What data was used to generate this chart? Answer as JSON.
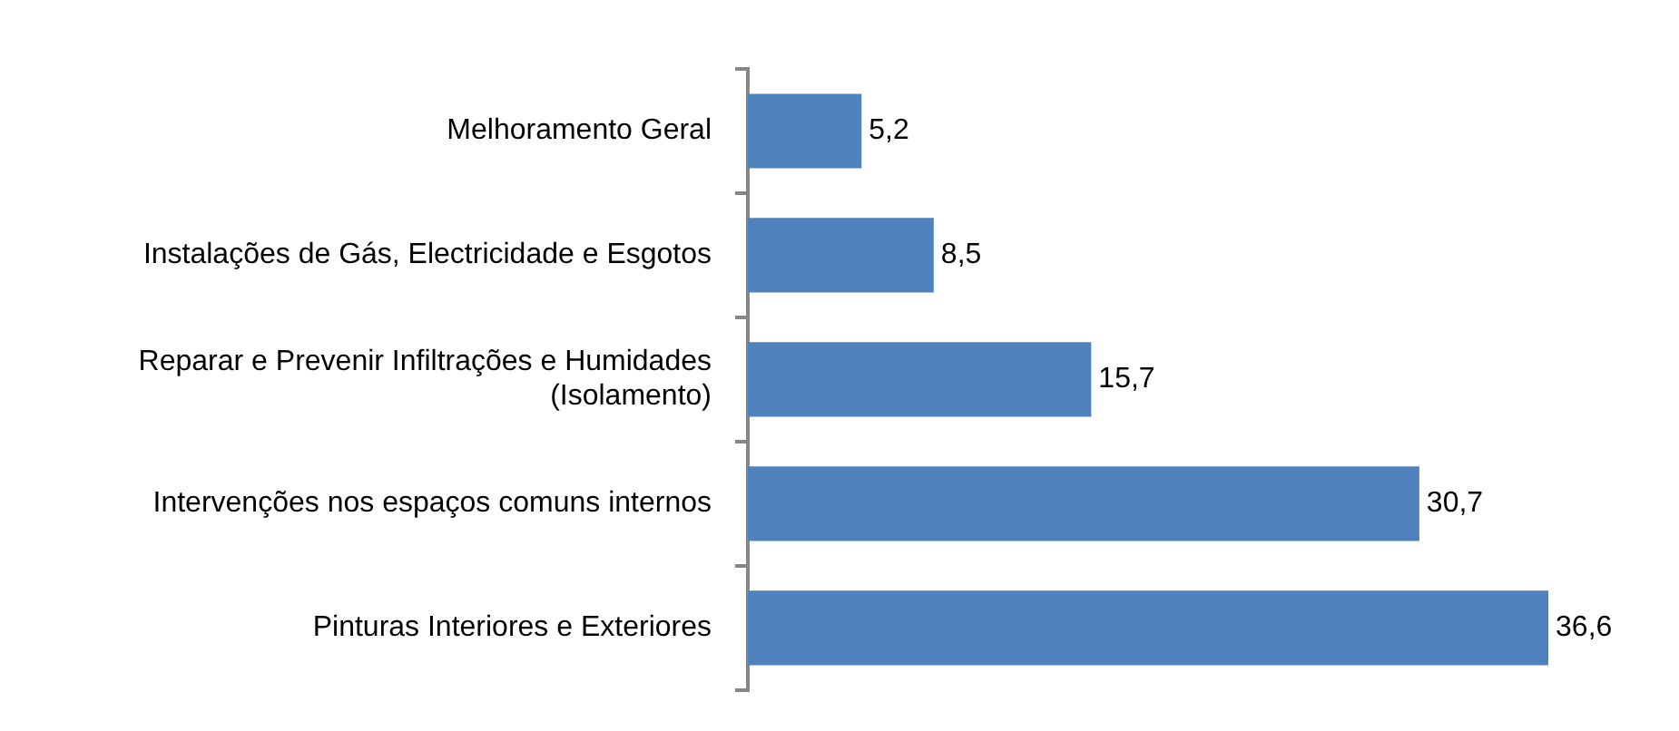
{
  "chart_data": {
    "type": "bar",
    "orientation": "horizontal",
    "categories": [
      "Melhoramento Geral",
      "Instalações de Gás, Electricidade e Esgotos",
      "Reparar e Prevenir Infiltrações e Humidades (Isolamento)",
      "Intervenções nos espaços comuns internos",
      "Pinturas Interiores e Exteriores"
    ],
    "values": [
      5.2,
      8.5,
      15.7,
      30.7,
      36.6
    ],
    "color": "#4f81bd",
    "value_labels": [
      "5,2",
      "8,5",
      "15,7",
      "30,7",
      "36,6"
    ]
  }
}
